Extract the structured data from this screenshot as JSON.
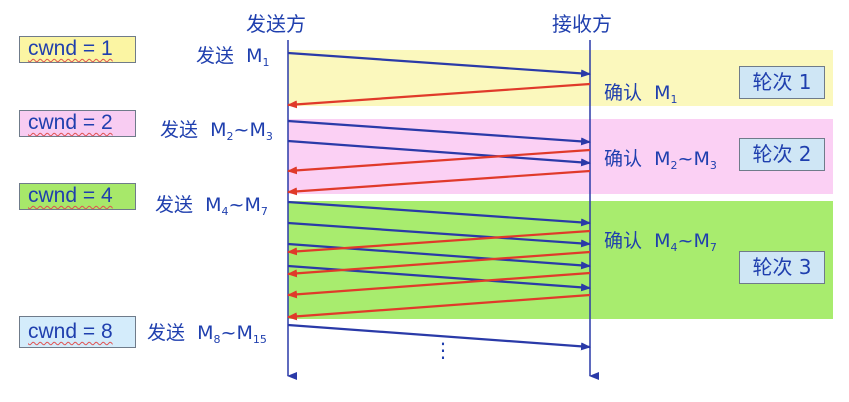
{
  "headers": {
    "sender": "发送方",
    "receiver": "接收方"
  },
  "cwnd": [
    {
      "label": "cwnd = 1",
      "color": "#fbf5a3"
    },
    {
      "label": "cwnd = 2",
      "color": "#f8ccf2"
    },
    {
      "label": "cwnd = 4",
      "color": "#a7e86a"
    },
    {
      "label": "cwnd = 8",
      "color": "#d4ecfb"
    }
  ],
  "rounds": [
    {
      "label": "轮次 1",
      "band_color": "#fbf8bd"
    },
    {
      "label": "轮次 2",
      "band_color": "#fbd0f4"
    },
    {
      "label": "轮次 3",
      "band_color": "#a8ec6e"
    }
  ],
  "send_labels": [
    {
      "prefix": "发送",
      "first": "M",
      "first_sub": "1",
      "last": "",
      "last_sub": ""
    },
    {
      "prefix": "发送",
      "first": "M",
      "first_sub": "2",
      "last": "M",
      "last_sub": "3"
    },
    {
      "prefix": "发送",
      "first": "M",
      "first_sub": "4",
      "last": "M",
      "last_sub": "7"
    },
    {
      "prefix": "发送",
      "first": "M",
      "first_sub": "8",
      "last": "M",
      "last_sub": "15"
    }
  ],
  "ack_labels": [
    {
      "prefix": "确认",
      "first": "M",
      "first_sub": "1",
      "last": "",
      "last_sub": ""
    },
    {
      "prefix": "确认",
      "first": "M",
      "first_sub": "2",
      "last": "M",
      "last_sub": "3"
    },
    {
      "prefix": "确认",
      "first": "M",
      "first_sub": "4",
      "last": "M",
      "last_sub": "7"
    }
  ],
  "continuation": "⋮",
  "colors": {
    "data_arrow": "#2a3aa8",
    "ack_arrow": "#e03a2a",
    "timeline": "#2a3aa8"
  }
}
